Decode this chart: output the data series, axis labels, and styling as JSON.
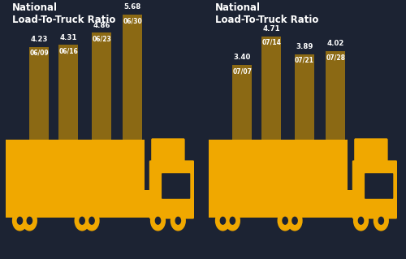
{
  "background_color": "#1c2333",
  "title_color": "#ffffff",
  "bar_color": "#8B6914",
  "truck_color": "#f0a800",
  "panel1": {
    "title": "National\nLoad-To-Truck Ratio",
    "bars": [
      {
        "label": "06/09",
        "value": 4.23
      },
      {
        "label": "06/16",
        "value": 4.31
      },
      {
        "label": "06/23",
        "value": 4.86
      },
      {
        "label": "06/30",
        "value": 5.68
      }
    ]
  },
  "panel2": {
    "title": "National\nLoad-To-Truck Ratio",
    "bars": [
      {
        "label": "07/07",
        "value": 3.4
      },
      {
        "label": "07/14",
        "value": 4.71
      },
      {
        "label": "07/21",
        "value": 3.89
      },
      {
        "label": "07/28",
        "value": 4.02
      }
    ]
  },
  "figsize": [
    5.0,
    3.19
  ],
  "dpi": 100
}
